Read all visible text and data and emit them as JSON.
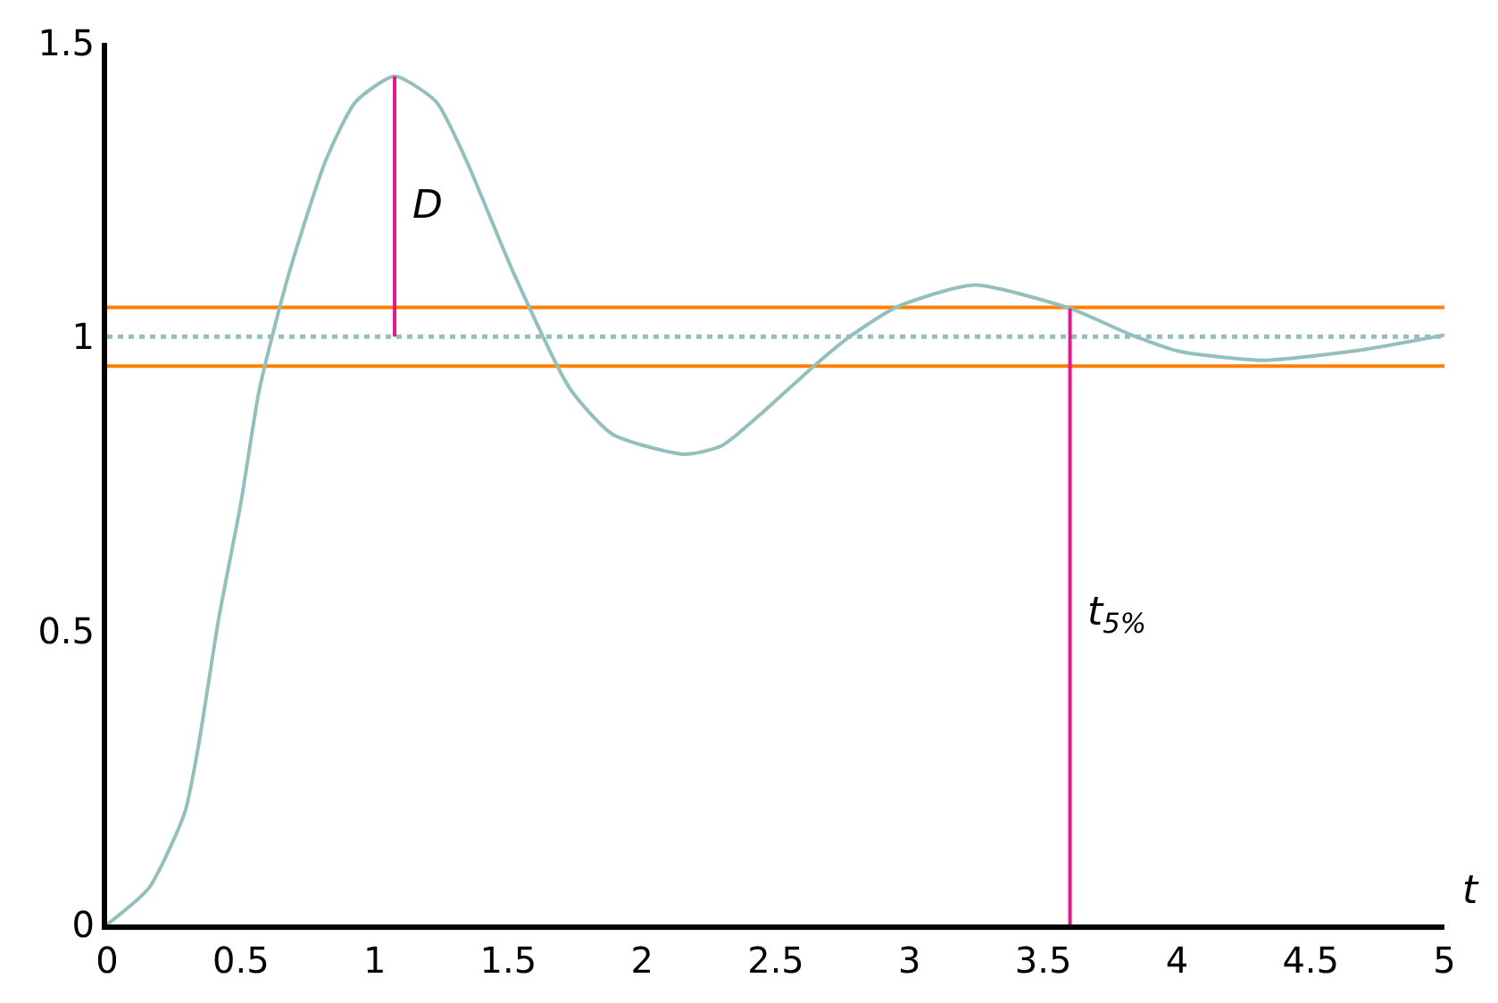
{
  "chart_data": {
    "type": "line",
    "xlabel": "t",
    "xlim": [
      0,
      5
    ],
    "ylim": [
      0,
      1.5
    ],
    "xticks": [
      0,
      0.5,
      1,
      1.5,
      2,
      2.5,
      3,
      3.5,
      4,
      4.5,
      5
    ],
    "yticks": [
      0,
      0.5,
      1,
      1.5
    ],
    "grid": false,
    "legend": false,
    "marker": "none",
    "series": [
      {
        "color": "#93bfbd",
        "x": [
          0,
          0.156,
          0.29,
          0.34,
          0.417,
          0.5,
          0.57,
          0.68,
          0.82,
          0.93,
          1.075,
          1.23,
          1.34,
          1.52,
          1.73,
          1.89,
          2.16,
          2.3,
          2.46,
          2.64,
          2.77,
          2.95,
          3.24,
          3.6,
          3.83,
          4.01,
          4.32,
          4.68,
          5.0
        ],
        "values": [
          0,
          0.062,
          0.19,
          0.3,
          0.52,
          0.717,
          0.912,
          1.108,
          1.303,
          1.4,
          1.443,
          1.4,
          1.303,
          1.108,
          0.912,
          0.834,
          0.8,
          0.815,
          0.875,
          0.949,
          0.998,
          1.05,
          1.088,
          1.048,
          1.003,
          0.975,
          0.96,
          0.977,
          1.003
        ]
      },
      {
        "name": "D",
        "color": "#e6168c",
        "line_style": "solid",
        "x": [
          1.075,
          1.075
        ],
        "values": [
          1.0,
          1.443
        ]
      },
      {
        "name": "t$_{5%}$",
        "color": "#e6168c",
        "x": [
          3.6,
          3.6
        ],
        "values": [
          0,
          1.048
        ]
      }
    ],
    "ref_lines": [
      {
        "axis": "y",
        "value": 1.05,
        "color": "#ff8000",
        "line_style": "solid"
      },
      {
        "axis": "y",
        "value": 1,
        "color": "#93bfbd",
        "line_style": "dotted"
      },
      {
        "axis": "y",
        "value": 0.95,
        "color": "#ff8000",
        "line_style": "solid"
      }
    ]
  }
}
